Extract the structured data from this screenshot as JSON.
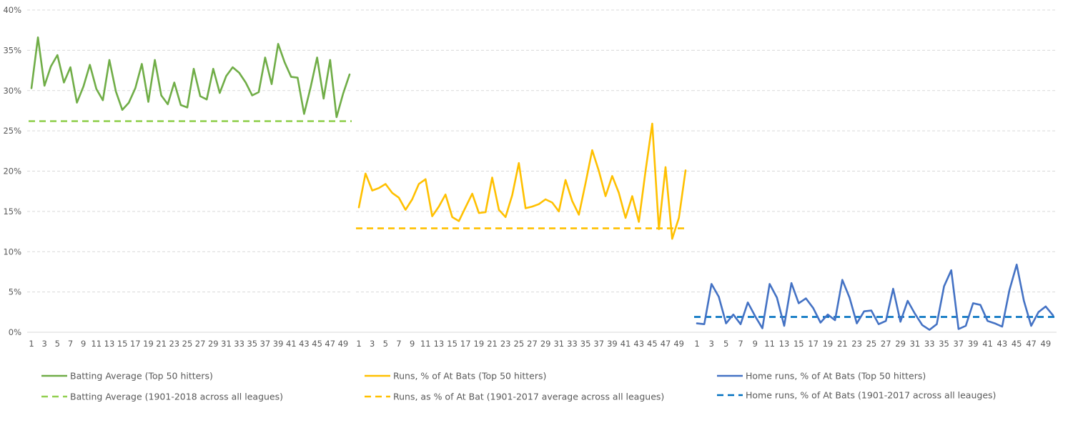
{
  "chart_data": {
    "type": "line",
    "y_axis": {
      "ylim": [
        0,
        40
      ],
      "ticks": [
        "0%",
        "5%",
        "10%",
        "15%",
        "20%",
        "25%",
        "30%",
        "35%",
        "40%"
      ],
      "tick_values": [
        0,
        5,
        10,
        15,
        20,
        25,
        30,
        35,
        40
      ]
    },
    "x_tick_labels": [
      "1",
      "3",
      "5",
      "7",
      "9",
      "11",
      "13",
      "15",
      "17",
      "19",
      "21",
      "23",
      "25",
      "27",
      "29",
      "31",
      "33",
      "35",
      "37",
      "39",
      "41",
      "43",
      "45",
      "47",
      "49"
    ],
    "grid": true,
    "panels": [
      {
        "name": "batting",
        "color": "#70ad47",
        "ref_color": "#92d050",
        "series": {
          "name": "Batting Average (Top 50 hitters)",
          "x": [
            1,
            2,
            3,
            4,
            5,
            6,
            7,
            8,
            9,
            10,
            11,
            12,
            13,
            14,
            15,
            16,
            17,
            18,
            19,
            20,
            21,
            22,
            23,
            24,
            25,
            26,
            27,
            28,
            29,
            30,
            31,
            32,
            33,
            34,
            35,
            36,
            37,
            38,
            39,
            40,
            41,
            42,
            43,
            44,
            45,
            46,
            47,
            48,
            49,
            50
          ],
          "values": [
            30.3,
            36.6,
            30.6,
            33.0,
            34.4,
            31.0,
            32.9,
            28.5,
            30.5,
            33.2,
            30.2,
            28.8,
            33.8,
            29.9,
            27.6,
            28.5,
            30.3,
            33.3,
            28.6,
            33.8,
            29.4,
            28.3,
            31.0,
            28.2,
            27.9,
            32.7,
            29.3,
            28.9,
            32.7,
            29.7,
            31.8,
            32.9,
            32.2,
            31.0,
            29.4,
            29.8,
            34.1,
            30.8,
            35.8,
            33.5,
            31.7,
            31.6,
            27.1,
            30.4,
            34.1,
            29.0,
            33.8,
            26.7,
            29.6,
            32.0
          ]
        },
        "reference": {
          "name": "Batting Average (1901-2018 across all leagues)",
          "value": 26.2
        }
      },
      {
        "name": "runs",
        "color": "#ffc000",
        "ref_color": "#ffc000",
        "series": {
          "name": "Runs, % of At Bats (Top 50 hitters)",
          "x": [
            1,
            2,
            3,
            4,
            5,
            6,
            7,
            8,
            9,
            10,
            11,
            12,
            13,
            14,
            15,
            16,
            17,
            18,
            19,
            20,
            21,
            22,
            23,
            24,
            25,
            26,
            27,
            28,
            29,
            30,
            31,
            32,
            33,
            34,
            35,
            36,
            37,
            38,
            39,
            40,
            41,
            42,
            43,
            44,
            45,
            46,
            47,
            48,
            49,
            50
          ],
          "values": [
            15.5,
            19.7,
            17.6,
            17.9,
            18.4,
            17.3,
            16.7,
            15.2,
            16.5,
            18.4,
            19.0,
            14.4,
            15.6,
            17.1,
            14.3,
            13.8,
            15.5,
            17.2,
            14.8,
            14.9,
            19.2,
            15.2,
            14.3,
            17.0,
            21.0,
            15.4,
            15.6,
            15.9,
            16.5,
            16.1,
            15.0,
            18.9,
            16.3,
            14.6,
            18.5,
            22.6,
            20.0,
            16.9,
            19.4,
            17.3,
            14.2,
            16.9,
            13.7,
            20.0,
            25.9,
            12.8,
            20.5,
            11.6,
            14.2,
            20.1
          ]
        },
        "reference": {
          "name": "Runs, as % of At Bat (1901-2017 average across all leagues)",
          "value": 12.9
        }
      },
      {
        "name": "home_runs",
        "color": "#4472c4",
        "ref_color": "#0070c0",
        "series": {
          "name": "Home runs, % of At Bats (Top 50 hitters)",
          "x": [
            1,
            2,
            3,
            4,
            5,
            6,
            7,
            8,
            9,
            10,
            11,
            12,
            13,
            14,
            15,
            16,
            17,
            18,
            19,
            20,
            21,
            22,
            23,
            24,
            25,
            26,
            27,
            28,
            29,
            30,
            31,
            32,
            33,
            34,
            35,
            36,
            37,
            38,
            39,
            40,
            41,
            42,
            43,
            44,
            45,
            46,
            47,
            48,
            49,
            50
          ],
          "values": [
            1.1,
            1.0,
            6.0,
            4.4,
            1.1,
            2.2,
            1.0,
            3.7,
            2.0,
            0.5,
            6.0,
            4.3,
            0.8,
            6.1,
            3.6,
            4.2,
            3.0,
            1.2,
            2.2,
            1.5,
            6.5,
            4.3,
            1.1,
            2.6,
            2.7,
            1.0,
            1.4,
            5.4,
            1.3,
            3.9,
            2.3,
            0.9,
            0.3,
            1.0,
            5.7,
            7.7,
            0.4,
            0.8,
            3.6,
            3.4,
            1.4,
            1.1,
            0.7,
            5.2,
            8.4,
            3.9,
            0.8,
            2.5,
            3.2,
            2.1
          ]
        },
        "reference": {
          "name": "Home runs, % of At Bats (1901-2017 across all leauges)",
          "value": 1.9
        }
      }
    ]
  }
}
